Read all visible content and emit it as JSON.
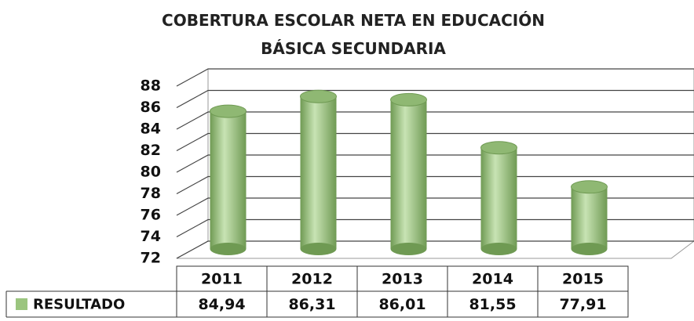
{
  "chart_data": {
    "type": "bar3d",
    "title": "COBERTURA ESCOLAR NETA EN EDUCACIÓN BÁSICA SECUNDARIA",
    "categories": [
      "2011",
      "2012",
      "2013",
      "2014",
      "2015"
    ],
    "series": [
      {
        "name": "RESULTADO",
        "color": "#9bc57f",
        "values": [
          84.94,
          86.31,
          86.01,
          81.55,
          77.91
        ],
        "value_labels": [
          "84,94",
          "86,31",
          "86,01",
          "81,55",
          "77,91"
        ]
      }
    ],
    "ylim": [
      72,
      88
    ],
    "yticks": [
      72,
      74,
      76,
      78,
      80,
      82,
      84,
      86,
      88
    ],
    "grid": true
  }
}
